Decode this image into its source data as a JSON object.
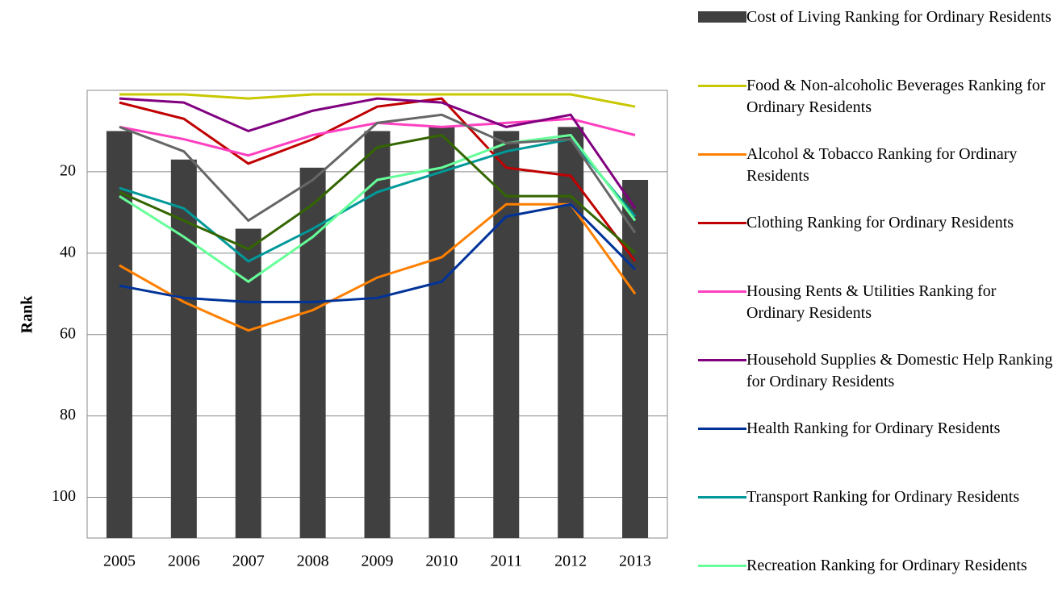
{
  "chart_data": {
    "type": "bar_line",
    "y_label": "Rank",
    "categories": [
      "2005",
      "2006",
      "2007",
      "2008",
      "2009",
      "2010",
      "2011",
      "2012",
      "2013"
    ],
    "ylim": [
      0,
      110
    ],
    "yticks": [
      20,
      40,
      60,
      80,
      100
    ],
    "y_inverted": true,
    "grid": true,
    "legend": "right",
    "series": [
      {
        "name": "Cost of Living Ranking for Ordinary Residents",
        "type": "bar",
        "color": "#404040",
        "values": [
          10,
          17,
          34,
          19,
          10,
          9,
          10,
          9,
          22
        ]
      },
      {
        "name": "Food & Non-alcoholic Beverages Ranking for Ordinary Residents",
        "type": "line",
        "color": "#c8c800",
        "values": [
          1,
          1,
          2,
          1,
          1,
          1,
          1,
          1,
          4
        ]
      },
      {
        "name": "Alcohol & Tobacco Ranking for Ordinary Residents",
        "type": "line",
        "color": "#ff8000",
        "values": [
          43,
          52,
          59,
          54,
          46,
          41,
          28,
          28,
          50
        ]
      },
      {
        "name": "Clothing Ranking for Ordinary Residents",
        "type": "line",
        "color": "#c00000",
        "values": [
          3,
          7,
          18,
          12,
          4,
          2,
          19,
          21,
          42
        ]
      },
      {
        "name": "Housing Rents & Utilities Ranking for Ordinary Residents",
        "type": "line",
        "color": "#ff40c0",
        "values": [
          9,
          12,
          16,
          11,
          8,
          9,
          8,
          7,
          11
        ]
      },
      {
        "name": "Household Supplies & Domestic Help Ranking for Ordinary Residents",
        "type": "line",
        "color": "#800080",
        "values": [
          2,
          3,
          10,
          5,
          2,
          3,
          9,
          6,
          29
        ]
      },
      {
        "name": "Health Ranking for Ordinary Residents",
        "type": "line",
        "color": "#003399",
        "values": [
          48,
          51,
          52,
          52,
          51,
          47,
          31,
          28,
          44
        ]
      },
      {
        "name": "Transport Ranking for Ordinary Residents",
        "type": "line",
        "color": "#009999",
        "values": [
          24,
          29,
          42,
          34,
          25,
          20,
          15,
          12,
          31
        ]
      },
      {
        "name": "Recreation Ranking for Ordinary Residents",
        "type": "line",
        "color": "#66ff99",
        "values": [
          26,
          36,
          47,
          36,
          22,
          19,
          13,
          11,
          32
        ]
      },
      {
        "type": "line",
        "color": "#666666",
        "values": [
          9,
          15,
          32,
          22,
          8,
          6,
          13,
          12,
          35
        ]
      },
      {
        "type": "line",
        "color": "#336600",
        "values": [
          25,
          32,
          39,
          28,
          14,
          11,
          26,
          26,
          40
        ]
      }
    ]
  }
}
